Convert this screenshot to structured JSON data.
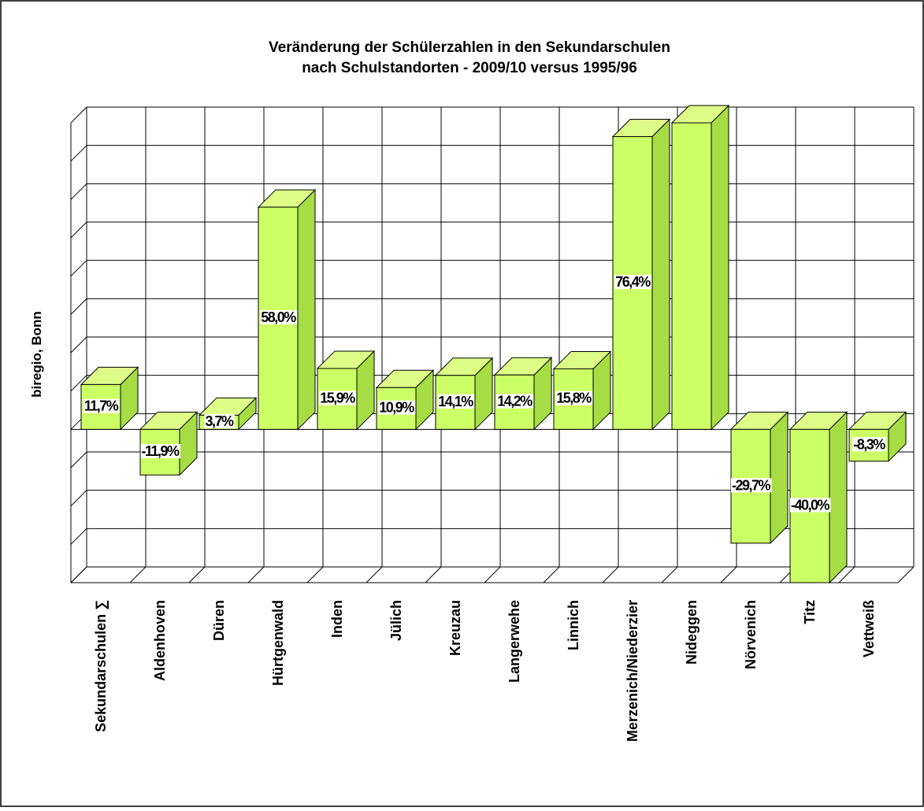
{
  "chart_data": {
    "type": "bar3d",
    "title": [
      "Veränderung der Schülerzahlen in den Sekundarschulen",
      "nach Schulstandorten - 2009/10 versus 1995/96"
    ],
    "ylabel": "biregio, Bonn",
    "categories": [
      "Sekundarschulen ∑",
      "Aldenhoven",
      "Düren",
      "Hürtgenwald",
      "Inden",
      "Jülich",
      "Kreuzau",
      "Langerwehe",
      "Linnich",
      "Merzenich/Niederzier",
      "Nideggen",
      "Nörvenich",
      "Titz",
      "Vettweiß"
    ],
    "values": [
      11.7,
      -11.9,
      3.7,
      58.0,
      15.9,
      10.9,
      14.1,
      14.2,
      15.8,
      76.4,
      80,
      -29.7,
      -40.0,
      -8.3
    ],
    "value_labels": [
      "11,7%",
      "-11,9%",
      "3,7%",
      "58,0%",
      "15,9%",
      "10,9%",
      "14,1%",
      "14,2%",
      "15,8%",
      "76,4%",
      null,
      "-29,7%",
      "-40,0%",
      "-8,3%"
    ],
    "color": "#ccff66",
    "ylim": [
      -40,
      80
    ],
    "yticks": [
      -40,
      -30,
      -20,
      -10,
      0,
      10,
      20,
      30,
      40,
      50,
      60,
      70,
      80
    ],
    "grid": true
  }
}
